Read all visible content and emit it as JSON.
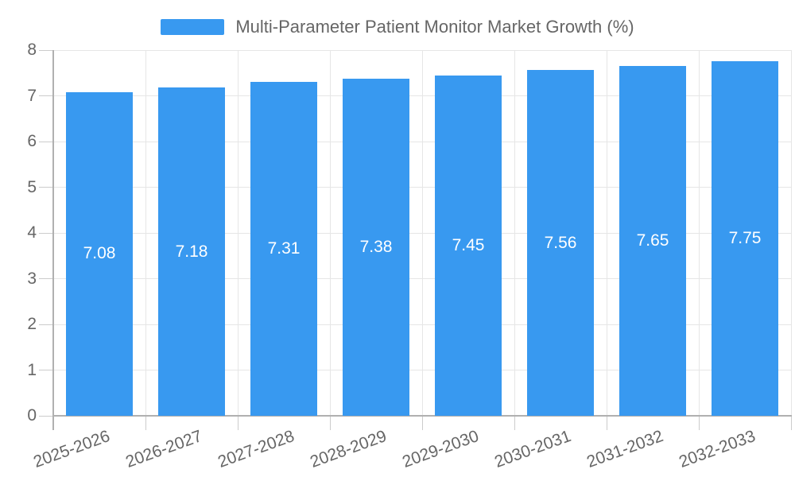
{
  "chart_data": {
    "type": "bar",
    "title": "Multi-Parameter Patient Monitor Market Growth (%)",
    "categories": [
      "2025-2026",
      "2026-2027",
      "2027-2028",
      "2028-2029",
      "2029-2030",
      "2030-2031",
      "2031-2032",
      "2032-2033"
    ],
    "values": [
      7.08,
      7.18,
      7.31,
      7.38,
      7.45,
      7.56,
      7.65,
      7.75
    ],
    "value_labels": [
      "7.08",
      "7.18",
      "7.31",
      "7.38",
      "7.45",
      "7.56",
      "7.65",
      "7.75"
    ],
    "xlabel": "",
    "ylabel": "",
    "ylim": [
      0,
      8
    ],
    "ytick_step": 1,
    "ytick_labels": [
      "0",
      "1",
      "2",
      "3",
      "4",
      "5",
      "6",
      "7",
      "8"
    ],
    "grid": true,
    "legend_position": "top",
    "colors": {
      "bar": "#3899F0",
      "value_label": "#FFFFFF",
      "grid": "#E6E6E6",
      "axis_line": "#B0B0B0",
      "tick": "#CCCCCC",
      "label_text": "#666666"
    }
  },
  "legend": {
    "label": "Multi-Parameter Patient Monitor Market Growth (%)"
  }
}
